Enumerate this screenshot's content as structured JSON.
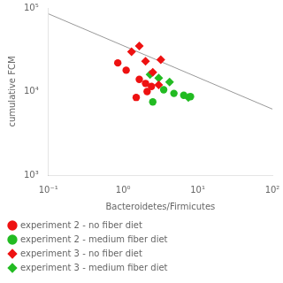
{
  "chart_data": {
    "type": "scatter",
    "xlabel": "Bacteroidetes/Firmicutes",
    "ylabel": "cumulative FCM",
    "log": true,
    "grid": false,
    "legend": "bottom",
    "xlim": [
      0.1,
      100
    ],
    "ylim": [
      1000,
      100000
    ],
    "xticks": [
      {
        "value": 0.1,
        "label": "10⁻¹"
      },
      {
        "value": 1,
        "label": "10⁰"
      },
      {
        "value": 10,
        "label": "10¹"
      },
      {
        "value": 100,
        "label": "10²"
      }
    ],
    "yticks": [
      {
        "value": 1000,
        "label": "10³"
      },
      {
        "value": 10000,
        "label": "10⁴"
      },
      {
        "value": 100000,
        "label": "10⁵"
      }
    ],
    "series": [
      {
        "type": "line",
        "color": "#999999",
        "x": [
          0.1,
          100
        ],
        "values": [
          85113.8,
          6165.95
        ]
      },
      {
        "name": "experiment 2 - no fiber diet",
        "color": "#ee1111",
        "marker": "circle",
        "x": [
          0.85,
          1.1,
          1.5,
          1.65,
          2.0,
          2.1,
          2.4
        ],
        "values": [
          22000,
          18000,
          8500,
          14000,
          12500,
          10000,
          11500
        ]
      },
      {
        "name": "experiment 2 - medium fiber diet",
        "color": "#22bb22",
        "marker": "circle",
        "x": [
          2.5,
          3.5,
          4.8,
          6.5,
          8.0
        ],
        "values": [
          7500,
          10500,
          9500,
          9000,
          8700
        ]
      },
      {
        "name": "experiment 3 - no fiber diet",
        "color": "#ee1111",
        "marker": "diamond",
        "x": [
          1.3,
          1.65,
          2.0,
          2.5,
          3.0,
          3.2
        ],
        "values": [
          30000,
          35000,
          23000,
          17000,
          12000,
          24000
        ]
      },
      {
        "name": "experiment 3 - medium fiber diet",
        "color": "#22bb22",
        "marker": "diamond",
        "x": [
          2.3,
          3.0,
          4.2,
          7.5
        ],
        "values": [
          16000,
          14500,
          13000,
          8500
        ]
      }
    ]
  }
}
